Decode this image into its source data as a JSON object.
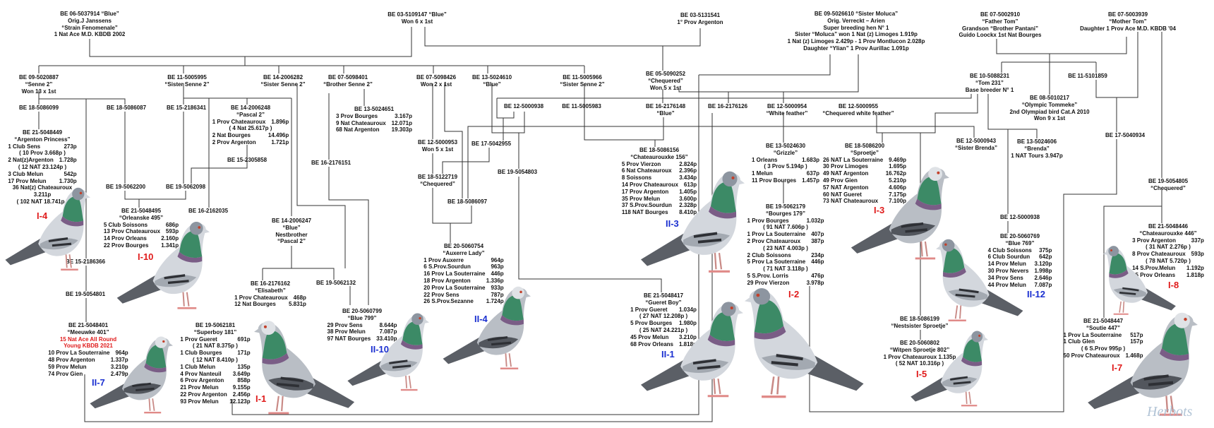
{
  "entries": [
    {
      "lines": [
        "BE 06-5037914  “Blue”",
        "Orig.J Janssens",
        "“Strain Fenomenale”",
        "1 Nat Ace M.D. KBDB 2002"
      ]
    },
    {
      "lines": [
        "BE 03-5109147  “Blue”",
        "Won 6 x 1st"
      ]
    },
    {
      "lines": [
        "BE 03-5131541",
        "1°  Prov Argenton"
      ]
    },
    {
      "lines": [
        "BE 09-5026610  “Sister Moluca”",
        "Orig. Verreckt – Arien",
        "Super breeding hen N° 1",
        "Sister  “Moluca”  won 1 Nat (z) Limoges 1.919p",
        "1 Nat (z) Limoges 2.429p - 1 Prov Montlucon 2.028p",
        "Daughter  “Ylian”  1 Prov Aurillac 1.091p"
      ]
    },
    {
      "lines": [
        "BE 07-5002910",
        "“Father Tom”",
        "Grandson  “Brother Pantani”",
        "Guido Loockx 1st Nat Bourges"
      ]
    },
    {
      "lines": [
        "BE 07-5003939",
        "“Mother Tom”",
        "Daughter 1 Prov Ace M.D. KBDB  '04"
      ]
    },
    {
      "lines": [
        "BE 09-5020887",
        "“Senne 2”",
        "Won 13 x 1st"
      ]
    },
    {
      "lines": [
        "BE 11-5005995",
        "“Sister Senne 2”"
      ]
    },
    {
      "lines": [
        "BE 14-2006282",
        "“Sister Senne 2”"
      ]
    },
    {
      "lines": [
        "BE 07-5098401",
        "“Brother  Senne 2”"
      ]
    },
    {
      "lines": [
        "BE 07-5098426",
        "Won 2 x 1st"
      ]
    },
    {
      "lines": [
        "BE 13-5024610",
        "“Blue”"
      ]
    },
    {
      "lines": [
        "BE 11-5005966",
        "“Sister Senne 2”"
      ]
    },
    {
      "lines": [
        "BE 05-5090252",
        "“Chequered”",
        "Won 5 x 1st"
      ]
    },
    {
      "lines": [
        "BE 10-5088231",
        "“Tom 231”",
        "Base breeder N° 1"
      ]
    },
    {
      "lines": [
        "BE 11-5101859"
      ]
    },
    {
      "lines": [
        "BE 08-5010217",
        "“Olympic Tommeke”",
        "2nd Olympiad bird Cat.A 2010",
        "Won 9 x 1st"
      ]
    },
    {
      "lines": [
        "BE 18-5086099"
      ]
    },
    {
      "lines": [
        "BE 18-5086087"
      ]
    },
    {
      "lines": [
        "BE 15-2186341"
      ]
    },
    {
      "lines": [
        "BE 14-2006248",
        "“Pascal 2”"
      ],
      "results": [
        [
          "1 Prov Chateauroux",
          "1.896p"
        ],
        [
          "( 4 Nat 25.617p )"
        ],
        [
          "2 Nat Bourges",
          "14.496p"
        ],
        [
          "2 Prov Argenton",
          "1.721p"
        ]
      ]
    },
    {
      "lines": [
        "BE 13-5024651"
      ],
      "results": [
        [
          "3 Prov Bourges",
          "3.167p"
        ],
        [
          "9 Nat Chateauroux",
          "12.071p"
        ],
        [
          "68 Nat Argenton",
          "19.303p"
        ]
      ]
    },
    {
      "lines": [
        "BE 12-5000938"
      ]
    },
    {
      "lines": [
        "BE 11-5005983"
      ]
    },
    {
      "lines": [
        "BE 16-2176148",
        "“Blue”"
      ]
    },
    {
      "lines": [
        "BE 16-2176126"
      ]
    },
    {
      "lines": [
        "BE 12-5000954",
        "“White feather”"
      ]
    },
    {
      "lines": [
        "BE 12-5000955",
        "“Chequered white feather”"
      ]
    },
    {
      "lines": [
        "BE 12-5000943",
        "“Sister Brenda”"
      ]
    },
    {
      "lines": [
        "BE 13-5024606",
        "“Brenda”",
        "1 NAT Tours 3.947p"
      ]
    },
    {
      "lines": [
        "BE 17-5040934"
      ]
    },
    {
      "lines": [
        "BE 19-5054805",
        "“Chequered”"
      ]
    },
    {
      "lines": [
        "BE 21-5048449",
        "“Argenton Princess”"
      ],
      "results": [
        [
          "1 Club Sens",
          "273p"
        ],
        [
          "( 10 Prov 3.668p )"
        ],
        [
          "2 Nat(z)Argenton",
          "1.728p"
        ],
        [
          "( 12 NAT 23.124p )"
        ],
        [
          "3 Club Melun",
          "542p"
        ],
        [
          "17 Prov Melun",
          "1.730p"
        ],
        [
          "36 Nat(z) Chateauroux"
        ],
        [
          "3.211p"
        ],
        [
          "( 102 NAT 18.741p )"
        ]
      ]
    },
    {
      "lines": [
        "BE 15-2305858"
      ]
    },
    {
      "lines": [
        "BE 19-5062200"
      ]
    },
    {
      "lines": [
        "BE 19-5062098"
      ]
    },
    {
      "lines": [
        "BE 21-5048495",
        "“Orleanske 495”"
      ],
      "results": [
        [
          "5 Club Soissons",
          "686p"
        ],
        [
          "13 Prov Chateauroux",
          "593p"
        ],
        [
          "14 Prov Orleans",
          "2.160p"
        ],
        [
          "22 Prov Bourges",
          "1.341p"
        ]
      ]
    },
    {
      "lines": [
        "BE 16-2162035"
      ]
    },
    {
      "lines": [
        "BE 16-2176151"
      ]
    },
    {
      "lines": [
        "BE 12-5000953",
        "Won 5 x 1st"
      ]
    },
    {
      "lines": [
        "BE 17-5042955"
      ]
    },
    {
      "lines": [
        "BE 19-5054803"
      ]
    },
    {
      "lines": [
        "BE 18-5122719",
        "“Chequered”"
      ]
    },
    {
      "lines": [
        "BE 18-5086097"
      ]
    },
    {
      "lines": [
        "BE 20-5060754",
        "“Auxerre Lady”"
      ],
      "results": [
        [
          "1 Prov Auxerre",
          "964p"
        ],
        [
          "6 S.Prov.Sourdun",
          "963p"
        ],
        [
          "16 Prov La Souterraine",
          "446p"
        ],
        [
          "18 Prov Argenton",
          "1.336p"
        ],
        [
          "20 Prov La Souterraine",
          "933p"
        ],
        [
          "22 Prov Sens",
          "787p"
        ],
        [
          "26 S.Prov.Sezanne",
          "1.724p"
        ]
      ]
    },
    {
      "lines": [
        "BE 14-2006247",
        "“Blue”",
        "Nestbrother",
        "“Pascal 2”"
      ]
    },
    {
      "lines": [
        "BE 16-2176162",
        "“Elisabeth”"
      ],
      "results": [
        [
          "1 Prov Chateauroux",
          "468p"
        ],
        [
          "12 Nat Bourges",
          "5.831p"
        ]
      ]
    },
    {
      "lines": [
        "BE 19-5062132"
      ]
    },
    {
      "lines": [
        "BE 20-5060799",
        "“Blue 799”"
      ],
      "results": [
        [
          "29 Prov Sens",
          "8.644p"
        ],
        [
          "38 Prov Melun",
          "7.087p"
        ],
        [
          "97 NAT Bourges",
          "33.410p"
        ]
      ]
    },
    {
      "lines": [
        "BE 15-2186366"
      ]
    },
    {
      "lines": [
        "BE 19-5054801"
      ]
    },
    {
      "lines": [
        "BE 21-5048401",
        "“Meeuwke 401”"
      ],
      "highlight": [
        "15 Nat Ace All Round",
        "Young KBDB 2021"
      ],
      "results": [
        [
          "10 Prov La Souterraine",
          "964p"
        ],
        [
          "48 Prov Argenton",
          "1.337p"
        ],
        [
          "59 Prov Melun",
          "3.210p"
        ],
        [
          "74 Prov Gien",
          "2.479p"
        ]
      ]
    },
    {
      "lines": [
        "BE 19-5062181",
        "“Superboy 181”"
      ],
      "results": [
        [
          "1 Prov Gueret",
          "691p"
        ],
        [
          "( 21 NAT 8.375p )"
        ],
        [
          "1 Club Bourges",
          "171p"
        ],
        [
          "( 12 NAT 8.410p )"
        ],
        [
          "1 Club Melun",
          "135p"
        ],
        [
          "4 Prov Nanteuil",
          "3.649p"
        ],
        [
          "6 Prov Argenton",
          "858p"
        ],
        [
          "21 Prov Melun",
          "9.155p"
        ],
        [
          "22 Prov Argenton",
          "2.456p"
        ],
        [
          "93 Prov Melun",
          "12.123p"
        ]
      ]
    },
    {
      "lines": [
        "BE 18-5086156",
        "“Chateaurouxke 156”"
      ],
      "results": [
        [
          "5 Prov Vierzon",
          "2.824p"
        ],
        [
          "6 Nat Chateauroux",
          "2.396p"
        ],
        [
          "8 Soissons",
          "3.434p"
        ],
        [
          "14 Prov Chateauroux",
          "613p"
        ],
        [
          "17 Prov Argenton",
          "1.405p"
        ],
        [
          "35 Prov Melun",
          "3.600p"
        ],
        [
          "37 S.Prov.Sourdun",
          "2.328p"
        ],
        [
          "118 NAT Bourges",
          "8.410p"
        ]
      ]
    },
    {
      "lines": [
        "BE 13-5024630",
        "“Grizzle”"
      ],
      "results": [
        [
          "1 Orleans",
          "1.683p"
        ],
        [
          "( 3 Prov 5.194p )"
        ],
        [
          "1 Melun",
          "637p"
        ],
        [
          "11 Prov Bourges",
          "1.457p"
        ]
      ]
    },
    {
      "lines": [
        "BE 19-5062179",
        "“Bourges 179”"
      ],
      "results": [
        [
          "1 Prov Bourges",
          "1.032p"
        ],
        [
          "( 91 NAT 7.606p )"
        ],
        [
          "1 Prov La Souterraine",
          "407p"
        ],
        [
          "2 Prov Chateauroux",
          "387p"
        ],
        [
          "( 23 NAT 4.003p )"
        ],
        [
          "2 Club Soissons",
          "234p"
        ],
        [
          "5 Prov La Souterraine",
          "446p"
        ],
        [
          "( 71 NAT 3.118p )"
        ],
        [
          "5 S.Prov. Lorris",
          "476p"
        ],
        [
          "29 Prov Vierzon",
          "3.978p"
        ]
      ]
    },
    {
      "lines": [
        "BE 18-5086200",
        "“Sproetje”"
      ],
      "results": [
        [
          "26 NAT La Souterraine",
          "9.469p"
        ],
        [
          "30 Prov Limoges",
          "1.695p"
        ],
        [
          "49 NAT Argenton",
          "16.762p"
        ],
        [
          "49 Prov Gien",
          "5.210p"
        ],
        [
          "57 NAT Argenton",
          "4.606p"
        ],
        [
          "60 NAT Gueret",
          "7.175p"
        ],
        [
          "73 NAT Chateauroux",
          "7.100p"
        ]
      ]
    },
    {
      "lines": [
        "BE 21-5048417",
        "“Gueret Boy”"
      ],
      "results": [
        [
          "1 Prov Gueret",
          "1.034p"
        ],
        [
          "( 27 NAT 12.208p )"
        ],
        [
          "5 Prov Bourges",
          "1.980p"
        ],
        [
          "( 25 NAT 24.221p )"
        ],
        [
          "45 Prov Melun",
          "3.210p"
        ],
        [
          "68 Prov Orleans",
          "1.818p"
        ]
      ]
    },
    {
      "lines": [
        "BE 12-5000938"
      ]
    },
    {
      "lines": [
        "BE 20-5060769",
        "“Blue 769”"
      ],
      "results": [
        [
          "4 Club Soissons",
          "375p"
        ],
        [
          "6 Club Sourdun",
          "642p"
        ],
        [
          "14 Prov Melun",
          "3.120p"
        ],
        [
          "30 Prov Nevers",
          "1.998p"
        ],
        [
          "34 Prov Sens",
          "2.646p"
        ],
        [
          "44 Prov Melun",
          "7.087p"
        ]
      ]
    },
    {
      "lines": [
        "BE 18-5086199",
        "“Nestsister Sproetje”"
      ]
    },
    {
      "lines": [
        "BE 20-5060802",
        "“Witpen Sproetje 802”",
        "1 Prov Chateauroux 1.135p",
        "( 52 NAT 10.316p )"
      ]
    },
    {
      "lines": [
        "BE 21-5048446",
        "“Chateaurouxke 446”"
      ],
      "results": [
        [
          "3 Prov Argenton",
          "337p"
        ],
        [
          "( 31 NAT 2.276p )"
        ],
        [
          "8 Prov Chateauroux",
          "593p"
        ],
        [
          "( 78 NAT 5.720p )"
        ],
        [
          "14 S.Prov.Melun",
          "1.192p"
        ],
        [
          "55 Prov Orleans",
          "1.818p"
        ]
      ]
    },
    {
      "lines": [
        "BE 21-5048447",
        "“Soutie 447”"
      ],
      "results": [
        [
          "1 Prov La Souterraine",
          "517p"
        ],
        [
          "1 Club Glen",
          "157p"
        ],
        [
          "( 6 S.Prov 995p )"
        ],
        [
          "50 Prov Chateauroux",
          "1.468p"
        ]
      ]
    }
  ],
  "labels": [
    {
      "text": "I-4",
      "color": "#e01b1b"
    },
    {
      "text": "I-10",
      "color": "#e01b1b"
    },
    {
      "text": "II-7",
      "color": "#1a2fd0"
    },
    {
      "text": "I-1",
      "color": "#e01b1b"
    },
    {
      "text": "II-10",
      "color": "#1a2fd0"
    },
    {
      "text": "II-4",
      "color": "#1a2fd0"
    },
    {
      "text": "II-3",
      "color": "#1a2fd0"
    },
    {
      "text": "II-1",
      "color": "#1a2fd0"
    },
    {
      "text": "I-2",
      "color": "#e01b1b"
    },
    {
      "text": "I-3",
      "color": "#e01b1b"
    },
    {
      "text": "II-12",
      "color": "#1a2fd0"
    },
    {
      "text": "I-5",
      "color": "#e01b1b"
    },
    {
      "text": "I-8",
      "color": "#e01b1b"
    },
    {
      "text": "I-7",
      "color": "#e01b1b"
    }
  ],
  "watermark": "Herbots",
  "colors": {
    "line": "#333333",
    "highlight": "#e01b1b",
    "label_red": "#e01b1b",
    "label_blue": "#1a2fd0"
  }
}
